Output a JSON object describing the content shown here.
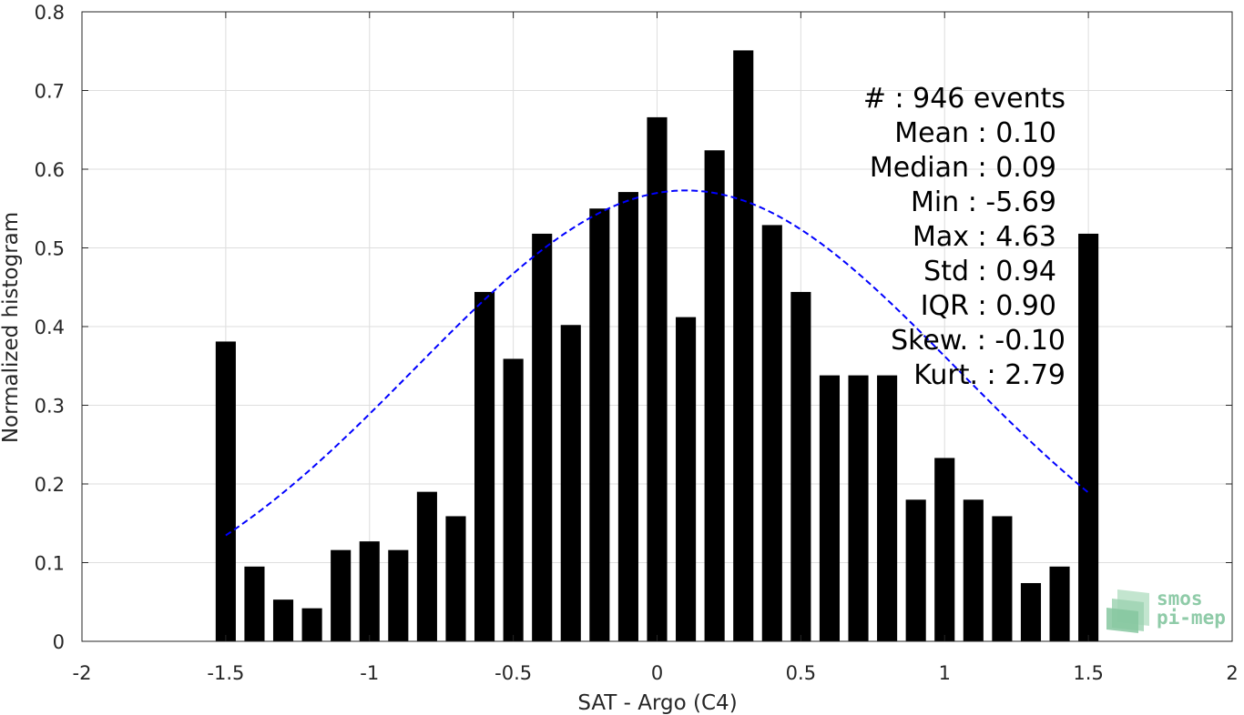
{
  "chart_data": {
    "type": "bar",
    "xlabel": "SAT - Argo (C4)",
    "ylabel": "Normalized histogram",
    "xlim": [
      -2,
      2
    ],
    "ylim": [
      0,
      0.8
    ],
    "xticks": [
      -2,
      -1.5,
      -1,
      -0.5,
      0,
      0.5,
      1,
      1.5,
      2
    ],
    "xtick_labels": [
      "-2",
      "-1.5",
      "-1",
      "-0.5",
      "0",
      "0.5",
      "1",
      "1.5",
      "2"
    ],
    "yticks": [
      0,
      0.1,
      0.2,
      0.3,
      0.4,
      0.5,
      0.6,
      0.7,
      0.8
    ],
    "ytick_labels": [
      "0",
      "0.1",
      "0.2",
      "0.3",
      "0.4",
      "0.5",
      "0.6",
      "0.7",
      "0.8"
    ],
    "grid": true,
    "bar_color": "#000000",
    "bar_width": 0.07,
    "bins": [
      -1.5,
      -1.4,
      -1.3,
      -1.2,
      -1.1,
      -1.0,
      -0.9,
      -0.8,
      -0.7,
      -0.6,
      -0.5,
      -0.4,
      -0.3,
      -0.2,
      -0.1,
      0.0,
      0.1,
      0.2,
      0.3,
      0.4,
      0.5,
      0.6,
      0.7,
      0.8,
      0.9,
      1.0,
      1.1,
      1.2,
      1.3,
      1.4,
      1.5
    ],
    "values": [
      0.381,
      0.095,
      0.053,
      0.042,
      0.116,
      0.127,
      0.116,
      0.19,
      0.159,
      0.444,
      0.359,
      0.518,
      0.402,
      0.55,
      0.571,
      0.666,
      0.412,
      0.624,
      0.751,
      0.529,
      0.444,
      0.338,
      0.338,
      0.338,
      0.18,
      0.233,
      0.18,
      0.159,
      0.074,
      0.095,
      0.518
    ],
    "fit_curve": {
      "style": "dashed",
      "color": "#0000ff",
      "mean": 0.1,
      "std": 0.94,
      "peak": 0.573,
      "x_range": [
        -1.5,
        1.5
      ]
    },
    "stats": [
      "#  : 946 events",
      "Mean : 0.10",
      "Median : 0.09",
      "Min : -5.69",
      "Max : 4.63",
      "Std : 0.94",
      "IQR : 0.90",
      "Skew. : -0.10",
      "Kurt. : 2.79"
    ]
  },
  "logo": {
    "line1": "smos",
    "line2": "pi-mep",
    "color": "#8fcba8"
  }
}
